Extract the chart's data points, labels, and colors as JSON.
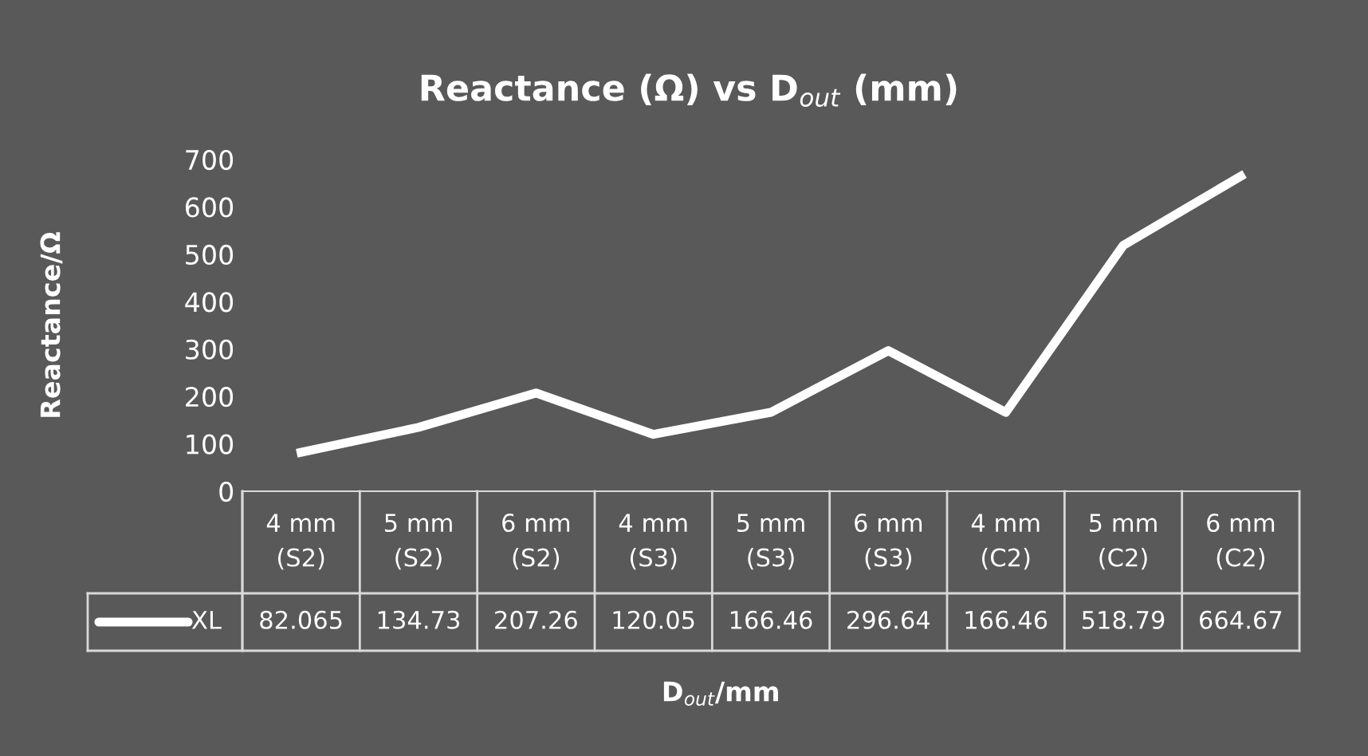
{
  "chart_data": {
    "type": "line",
    "title": "Reactance (Ω) vs D$_{out}$ (mm)",
    "xlabel": "D$_{out}$/mm",
    "ylabel": "Reactance/Ω",
    "categories": [
      "4 mm\n(S2)",
      "5 mm\n(S2)",
      "6 mm\n(S2)",
      "4 mm\n(S3)",
      "5 mm\n(S3)",
      "6 mm\n(S3)",
      "4 mm\n(C2)",
      "5 mm\n(C2)",
      "6 mm\n(C2)"
    ],
    "series": [
      {
        "name": "XL",
        "color": "#ffffff",
        "values": [
          82.065,
          134.73,
          207.26,
          120.05,
          166.46,
          296.64,
          166.46,
          518.79,
          664.67
        ]
      }
    ],
    "ylim": [
      0,
      700
    ],
    "yticks": [
      0,
      100,
      200,
      300,
      400,
      500,
      600,
      700
    ],
    "grid": false,
    "legend": "bottom",
    "data_labels": true,
    "marker": "none",
    "line_style": "solid"
  }
}
